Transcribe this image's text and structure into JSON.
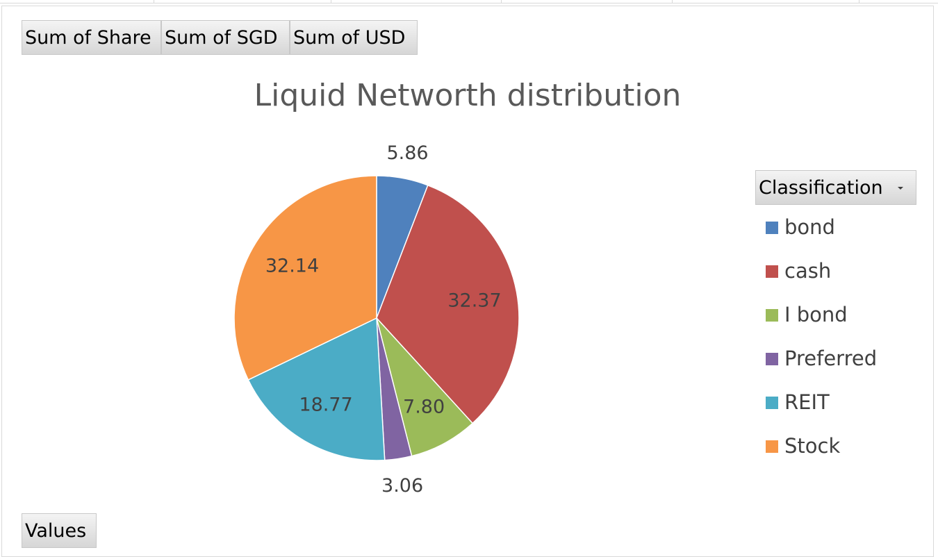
{
  "field_buttons": {
    "sum_share": "Sum of Share",
    "sum_sgd": "Sum of SGD",
    "sum_usd": "Sum of USD",
    "values": "Values"
  },
  "legend": {
    "header": "Classification",
    "dropdown_icon": "chevron-down-icon"
  },
  "chart_data": {
    "type": "pie",
    "title": "Liquid Networth distribution",
    "start_angle_deg": 0,
    "direction": "clockwise",
    "legend_position": "right",
    "slices": [
      {
        "label": "bond",
        "value": 5.86,
        "display": "5.86",
        "color": "#4F81BD",
        "label_position": "outside"
      },
      {
        "label": "cash",
        "value": 32.37,
        "display": "32.37",
        "color": "#C0504D",
        "label_position": "inside"
      },
      {
        "label": "I bond",
        "value": 7.8,
        "display": "7.80",
        "color": "#9BBB59",
        "label_position": "inside"
      },
      {
        "label": "Preferred",
        "value": 3.06,
        "display": "3.06",
        "color": "#8064A2",
        "label_position": "outside"
      },
      {
        "label": "REIT",
        "value": 18.77,
        "display": "18.77",
        "color": "#4BACC6",
        "label_position": "inside"
      },
      {
        "label": "Stock",
        "value": 32.14,
        "display": "32.14",
        "color": "#F79646",
        "label_position": "inside"
      }
    ]
  }
}
